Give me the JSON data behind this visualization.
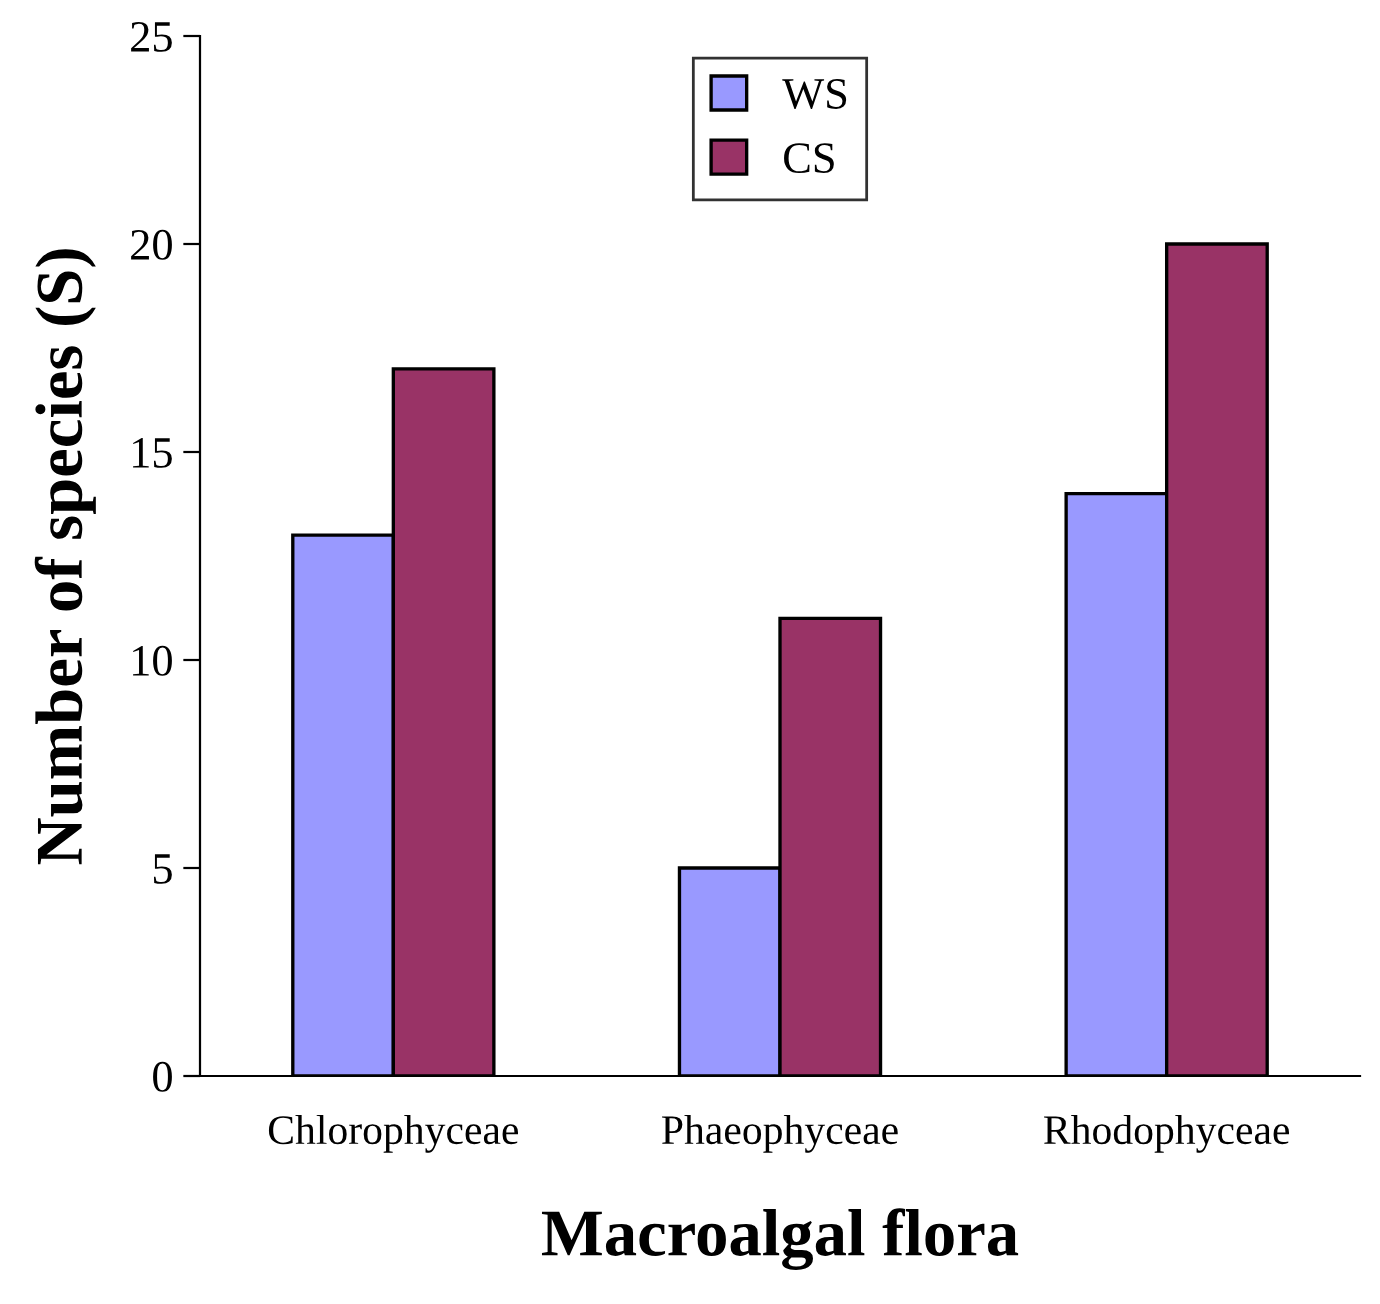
{
  "chart_data": {
    "type": "bar",
    "xlabel": "Macroalgal flora",
    "ylabel": "Number of species (S)",
    "categories": [
      "Chlorophyceae",
      "Phaeophyceae",
      "Rhodophyceae"
    ],
    "series": [
      {
        "name": "WS",
        "color": "#9999ff",
        "values": [
          13,
          5,
          14
        ]
      },
      {
        "name": "CS",
        "color": "#993366",
        "values": [
          17,
          11,
          20
        ]
      }
    ],
    "ylim": [
      0,
      25
    ],
    "yticks": [
      0,
      5,
      10,
      15,
      20,
      25
    ],
    "grid": false,
    "legend": "top"
  }
}
